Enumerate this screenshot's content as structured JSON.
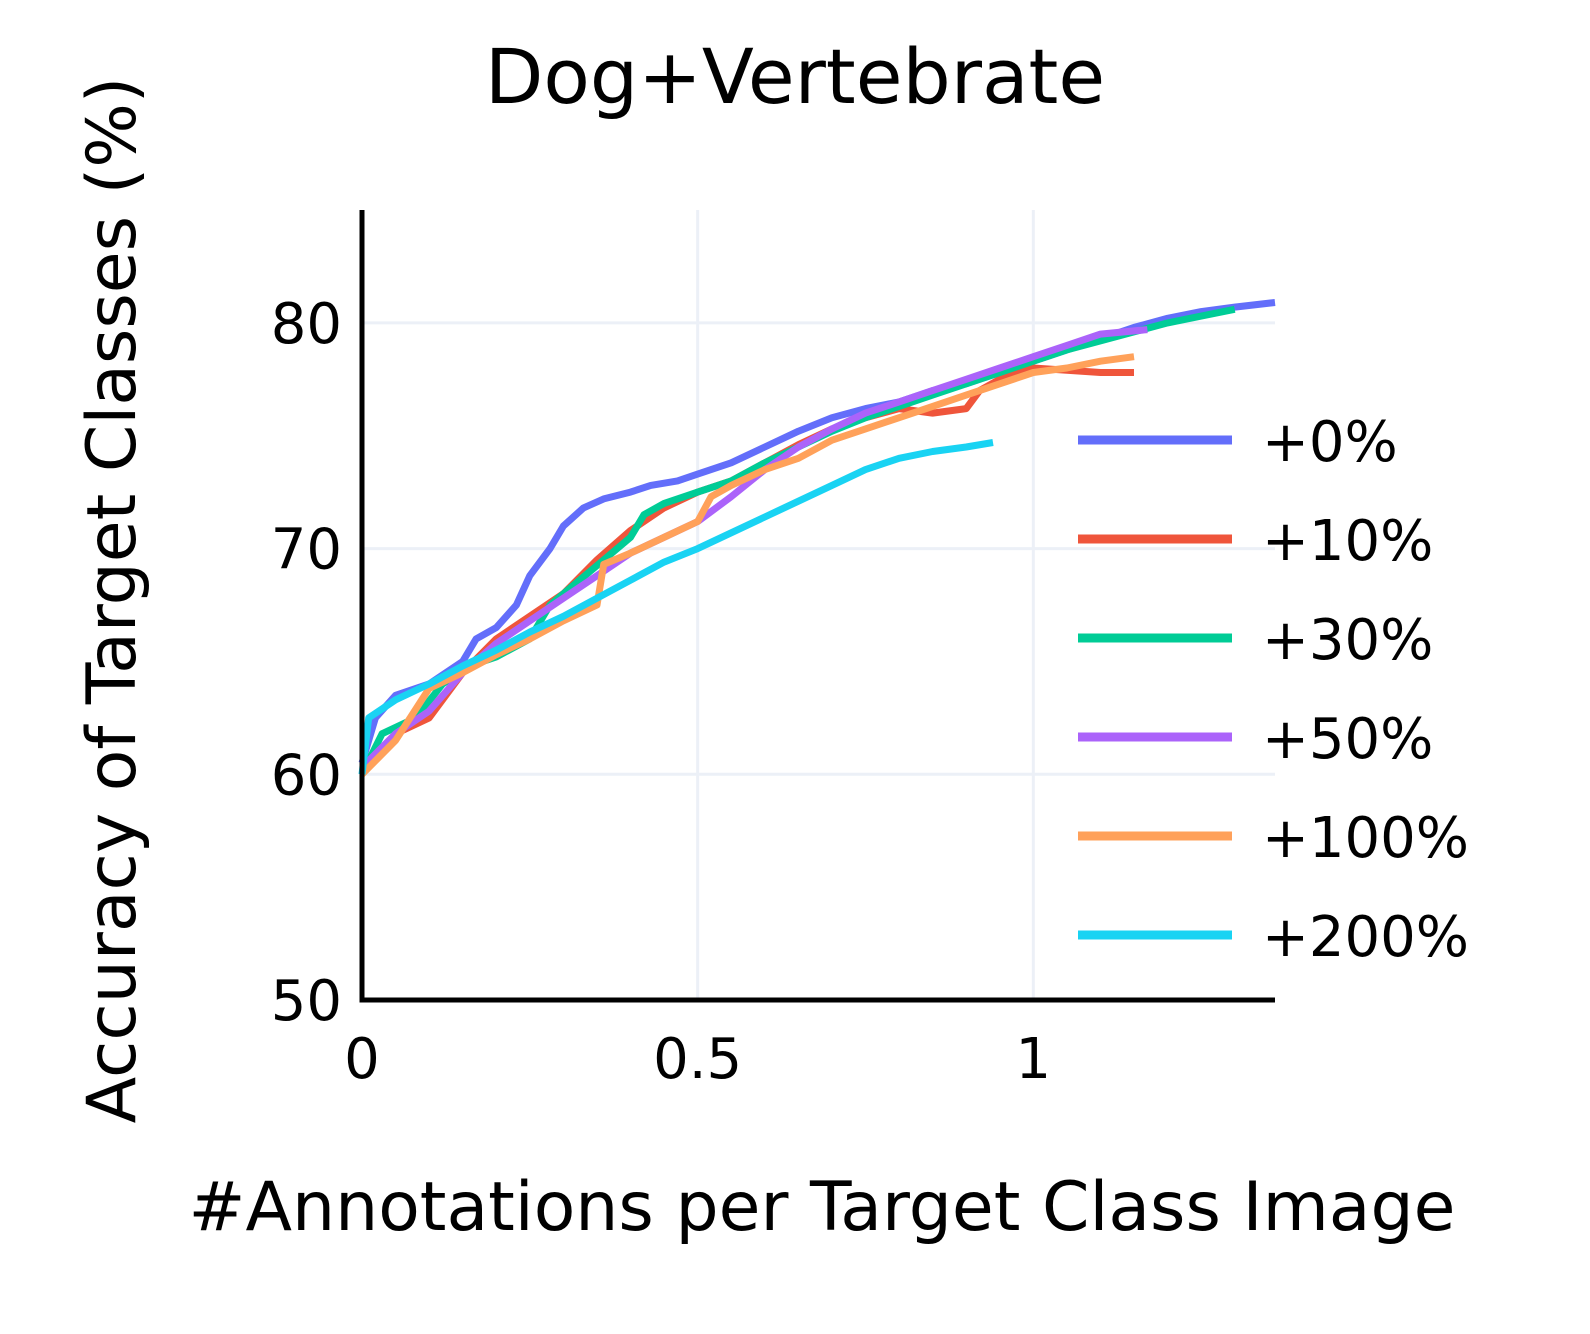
{
  "chart_data": {
    "type": "line",
    "title": "Dog+Vertebrate",
    "xlabel": "#Annotations per Target Class Image",
    "ylabel": "Accuracy of Target Classes (%)",
    "xlim": [
      0,
      1.36
    ],
    "ylim": [
      50,
      85
    ],
    "xticks": [
      0,
      0.5,
      1
    ],
    "xtick_labels": [
      "0",
      "0.5",
      "1"
    ],
    "yticks": [
      50,
      60,
      70,
      80
    ],
    "ytick_labels": [
      "50",
      "60",
      "70",
      "80"
    ],
    "grid": true,
    "legend_position": "right",
    "series": [
      {
        "name": "+0%",
        "color": "#636efa",
        "x": [
          0,
          0.02,
          0.05,
          0.1,
          0.15,
          0.17,
          0.2,
          0.23,
          0.25,
          0.28,
          0.3,
          0.33,
          0.36,
          0.4,
          0.43,
          0.47,
          0.5,
          0.55,
          0.6,
          0.65,
          0.7,
          0.75,
          0.8,
          0.85,
          0.9,
          0.95,
          1.0,
          1.05,
          1.1,
          1.15,
          1.2,
          1.25,
          1.3,
          1.36
        ],
        "y": [
          60.5,
          62.5,
          63.5,
          64.0,
          65.0,
          66.0,
          66.5,
          67.5,
          68.8,
          70.0,
          71.0,
          71.8,
          72.2,
          72.5,
          72.8,
          73.0,
          73.3,
          73.8,
          74.5,
          75.2,
          75.8,
          76.2,
          76.5,
          77.0,
          77.3,
          77.8,
          78.3,
          78.8,
          79.3,
          79.8,
          80.2,
          80.5,
          80.7,
          80.9
        ]
      },
      {
        "name": "+10%",
        "color": "#ef553b",
        "x": [
          0,
          0.05,
          0.1,
          0.15,
          0.2,
          0.25,
          0.3,
          0.35,
          0.4,
          0.45,
          0.5,
          0.55,
          0.6,
          0.65,
          0.7,
          0.75,
          0.8,
          0.85,
          0.9,
          0.92,
          0.95,
          1.0,
          1.05,
          1.1,
          1.15
        ],
        "y": [
          60.0,
          61.8,
          62.5,
          64.5,
          66.0,
          67.0,
          68.0,
          69.5,
          70.8,
          71.8,
          72.5,
          73.0,
          73.8,
          74.6,
          75.3,
          75.8,
          76.2,
          76.0,
          76.2,
          77.0,
          77.5,
          78.0,
          77.9,
          77.8,
          77.8
        ]
      },
      {
        "name": "+30%",
        "color": "#00cc96",
        "x": [
          0,
          0.03,
          0.08,
          0.12,
          0.16,
          0.2,
          0.25,
          0.28,
          0.32,
          0.36,
          0.4,
          0.42,
          0.45,
          0.5,
          0.55,
          0.6,
          0.65,
          0.7,
          0.75,
          0.8,
          0.85,
          0.9,
          0.95,
          1.0,
          1.05,
          1.1,
          1.15,
          1.2,
          1.25,
          1.3
        ],
        "y": [
          60.0,
          61.8,
          62.5,
          64.0,
          64.8,
          65.2,
          66.0,
          67.5,
          68.5,
          69.5,
          70.5,
          71.5,
          72.0,
          72.5,
          73.0,
          73.8,
          74.5,
          75.2,
          75.8,
          76.3,
          76.8,
          77.3,
          77.8,
          78.3,
          78.8,
          79.2,
          79.6,
          80.0,
          80.3,
          80.6
        ]
      },
      {
        "name": "+50%",
        "color": "#ab63fa",
        "x": [
          0,
          0.05,
          0.1,
          0.15,
          0.2,
          0.25,
          0.3,
          0.35,
          0.4,
          0.45,
          0.5,
          0.55,
          0.6,
          0.65,
          0.7,
          0.75,
          0.8,
          0.85,
          0.9,
          0.95,
          1.0,
          1.05,
          1.1,
          1.17
        ],
        "y": [
          60.3,
          61.8,
          62.8,
          64.5,
          65.8,
          66.8,
          67.8,
          68.8,
          69.8,
          70.5,
          71.2,
          72.3,
          73.5,
          74.5,
          75.3,
          76.0,
          76.5,
          77.0,
          77.5,
          78.0,
          78.5,
          79.0,
          79.5,
          79.7
        ]
      },
      {
        "name": "+100%",
        "color": "#ffa15a",
        "x": [
          0,
          0.05,
          0.1,
          0.15,
          0.2,
          0.25,
          0.3,
          0.35,
          0.36,
          0.4,
          0.45,
          0.5,
          0.52,
          0.55,
          0.6,
          0.65,
          0.7,
          0.75,
          0.8,
          0.85,
          0.9,
          0.95,
          1.0,
          1.05,
          1.1,
          1.15
        ],
        "y": [
          60.0,
          61.5,
          63.8,
          64.5,
          65.3,
          66.0,
          66.8,
          67.5,
          69.3,
          69.8,
          70.5,
          71.2,
          72.3,
          72.8,
          73.5,
          74.0,
          74.8,
          75.3,
          75.8,
          76.3,
          76.8,
          77.3,
          77.8,
          78.0,
          78.3,
          78.5
        ]
      },
      {
        "name": "+200%",
        "color": "#19d3f3",
        "x": [
          0,
          0.01,
          0.05,
          0.1,
          0.15,
          0.2,
          0.25,
          0.3,
          0.35,
          0.4,
          0.45,
          0.5,
          0.55,
          0.6,
          0.65,
          0.7,
          0.75,
          0.8,
          0.85,
          0.9,
          0.94
        ],
        "y": [
          60.0,
          62.5,
          63.3,
          64.0,
          64.8,
          65.5,
          66.3,
          67.0,
          67.8,
          68.6,
          69.4,
          70.0,
          70.7,
          71.4,
          72.1,
          72.8,
          73.5,
          74.0,
          74.3,
          74.5,
          74.7
        ]
      }
    ]
  }
}
